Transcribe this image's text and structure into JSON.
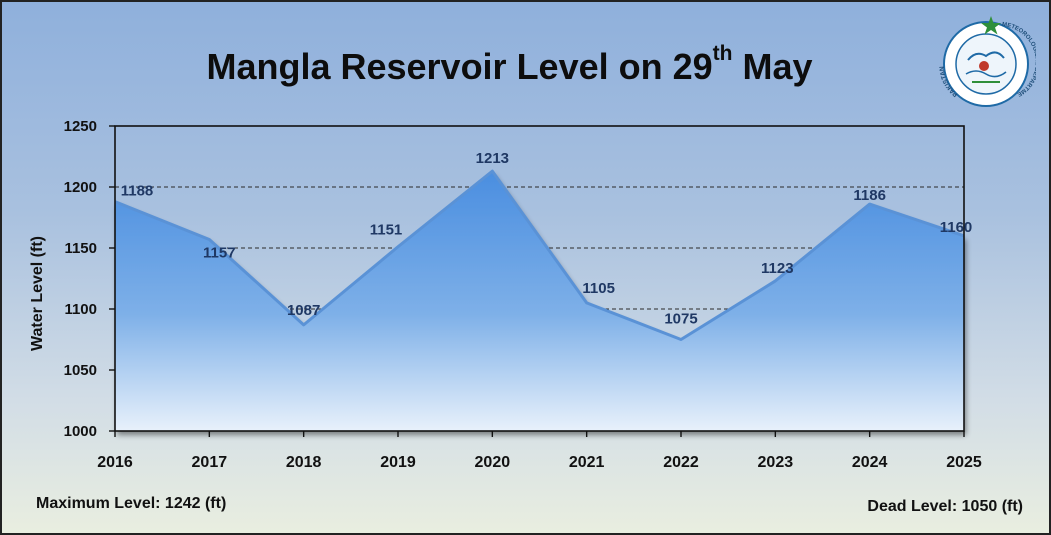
{
  "title": {
    "main": "Mangla Reservoir Level on 29",
    "suffix": "th",
    "tail": " May"
  },
  "footer": {
    "max_level": "Maximum Level: 1242 (ft)",
    "dead_level": "Dead Level: 1050 (ft)"
  },
  "logo": {
    "text_left": "PAKISTAN",
    "text_right": "METEOROLOGICAL DEPARTMENT",
    "colors": {
      "ring": "#1f6aa6",
      "star": "#2f8f3a",
      "accent": "#c0392b"
    }
  },
  "colors": {
    "area_top": "#4a8ee0",
    "area_bottom": "#e8f1fb",
    "line": "#5a92d6",
    "label": "#1f3864",
    "grid": "#2a2a2a"
  },
  "chart_data": {
    "type": "area",
    "title": "Mangla Reservoir Level on 29th May",
    "xlabel": "",
    "ylabel": "Water Level (ft)",
    "categories": [
      "2016",
      "2017",
      "2018",
      "2019",
      "2020",
      "2021",
      "2022",
      "2023",
      "2024",
      "2025"
    ],
    "values": [
      1188,
      1157,
      1087,
      1151,
      1213,
      1105,
      1075,
      1123,
      1186,
      1160
    ],
    "ylim": [
      1000,
      1250
    ],
    "yticks": [
      1000,
      1050,
      1100,
      1150,
      1200,
      1250
    ],
    "grid": "dashed horizontal"
  }
}
